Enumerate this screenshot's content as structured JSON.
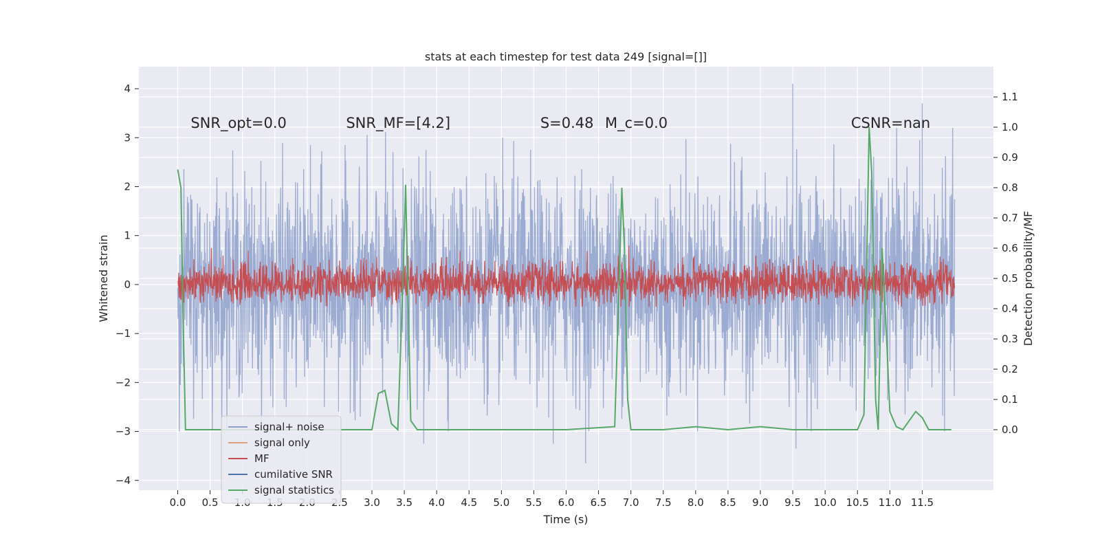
{
  "chart_data": {
    "type": "line",
    "title": "stats at each timestep for test data 249 [signal=[]]",
    "xlabel": "Time (s)",
    "ylabel_left": "Whitened strain",
    "ylabel_right": "Detection probability/MF",
    "xlim": [
      -0.6,
      12.6
    ],
    "ylim_left": [
      -4.2,
      4.45
    ],
    "ylim_right": [
      -0.2,
      1.2
    ],
    "x_ticks": [
      "0.0",
      "0.5",
      "1.0",
      "1.5",
      "2.0",
      "2.5",
      "3.0",
      "3.5",
      "4.0",
      "4.5",
      "5.0",
      "5.5",
      "6.0",
      "6.5",
      "7.0",
      "7.5",
      "8.0",
      "8.5",
      "9.0",
      "9.5",
      "10.0",
      "10.5",
      "11.0",
      "11.5"
    ],
    "y_ticks_left": [
      "−4",
      "−3",
      "−2",
      "−1",
      "0",
      "1",
      "2",
      "3",
      "4"
    ],
    "y_ticks_right": [
      "0.0",
      "0.1",
      "0.2",
      "0.3",
      "0.4",
      "0.5",
      "0.6",
      "0.7",
      "0.8",
      "0.9",
      "1.0",
      "1.1"
    ],
    "grid": true,
    "annotations": [
      {
        "text": "SNR_opt=0.0",
        "x": 0.2,
        "y": 3.2
      },
      {
        "text": "SNR_MF=[4.2]",
        "x": 2.6,
        "y": 3.2
      },
      {
        "text": "S=0.48",
        "x": 5.6,
        "y": 3.2
      },
      {
        "text": "M_c=0.0",
        "x": 6.6,
        "y": 3.2
      },
      {
        "text": "CSNR=nan",
        "x": 10.4,
        "y": 3.2
      }
    ],
    "legend": {
      "placement": "lower-left",
      "entries": [
        {
          "label": "signal+ noise",
          "color": "#8da0cb"
        },
        {
          "label": "signal only",
          "color": "#dd9f7e"
        },
        {
          "label": "MF",
          "color": "#c44e52"
        },
        {
          "label": "cumilative SNR",
          "color": "#4c72b0"
        },
        {
          "label": "signal statistics",
          "color": "#55a868"
        }
      ]
    },
    "series": [
      {
        "name": "signal+ noise",
        "axis": "left",
        "color": "#8da0cb",
        "description_range": [
          -2.6,
          2.6
        ],
        "t_start": 0.0,
        "t_end": 12.0,
        "peaks": [
          {
            "t": 9.5,
            "v": 4.1
          },
          {
            "t": 11.5,
            "v": 3.7
          },
          {
            "t": 6.3,
            "v": -3.65
          },
          {
            "t": 9.55,
            "v": -3.35
          },
          {
            "t": 3.8,
            "v": -3.25
          },
          {
            "t": 5.8,
            "v": -3.25
          }
        ]
      },
      {
        "name": "MF",
        "axis": "left",
        "color": "#c44e52",
        "description_range": [
          -0.45,
          0.8
        ],
        "t_start": 0.0,
        "t_end": 12.0
      },
      {
        "name": "signal statistics",
        "axis": "right",
        "color": "#55a868",
        "x": [
          0.0,
          0.05,
          0.08,
          0.12,
          0.2,
          1.0,
          2.0,
          3.0,
          3.1,
          3.2,
          3.3,
          3.4,
          3.48,
          3.52,
          3.6,
          3.7,
          4.0,
          5.0,
          6.0,
          6.75,
          6.82,
          6.86,
          6.9,
          6.95,
          7.0,
          7.5,
          8.0,
          8.5,
          9.0,
          9.5,
          10.0,
          10.5,
          10.6,
          10.68,
          10.72,
          10.78,
          10.82,
          10.88,
          10.95,
          11.0,
          11.1,
          11.2,
          11.4,
          11.5,
          11.6,
          11.7,
          11.95
        ],
        "y": [
          0.86,
          0.8,
          0.4,
          0.0,
          0.0,
          0.0,
          0.0,
          0.0,
          0.12,
          0.13,
          0.02,
          0.0,
          0.5,
          0.81,
          0.03,
          0.0,
          0.0,
          0.0,
          0.0,
          0.01,
          0.5,
          0.8,
          0.6,
          0.1,
          0.0,
          0.0,
          0.01,
          0.0,
          0.01,
          0.0,
          0.0,
          0.0,
          0.05,
          1.0,
          0.85,
          0.1,
          0.0,
          0.6,
          0.3,
          0.06,
          0.01,
          0.0,
          0.06,
          0.04,
          0.0,
          0.0,
          0.0
        ]
      }
    ]
  }
}
